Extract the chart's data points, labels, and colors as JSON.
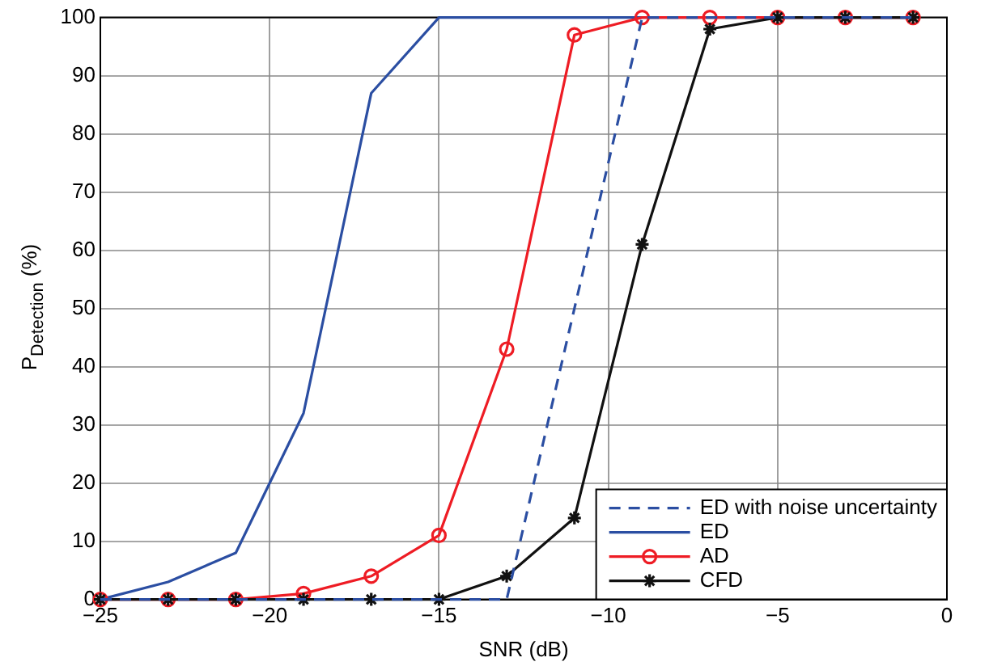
{
  "chart_data": {
    "type": "line",
    "xlabel": "SNR (dB)",
    "ylabel": "P$_{Detection}$ (%)",
    "x": [
      -25,
      -23,
      -21,
      -19,
      -17,
      -15,
      -13,
      -11,
      -9,
      -7,
      -5,
      -3,
      -1
    ],
    "series": [
      {
        "name": "ED with noise uncertainty",
        "color": "#2b4ea2",
        "line_style": "dashed",
        "marker": "none",
        "values": [
          0,
          0,
          0,
          0,
          0,
          0,
          0,
          50,
          100,
          100,
          100,
          100,
          100
        ]
      },
      {
        "name": "ED",
        "color": "#2b4ea2",
        "line_style": "solid",
        "marker": "none",
        "values": [
          0,
          3,
          8,
          32,
          87,
          100,
          100,
          100,
          100,
          100,
          100,
          100,
          100
        ]
      },
      {
        "name": "AD",
        "color": "#ee1c24",
        "line_style": "solid",
        "marker": "circle",
        "values": [
          0,
          0,
          0,
          1,
          4,
          11,
          43,
          97,
          100,
          100,
          100,
          100,
          100
        ]
      },
      {
        "name": "CFD",
        "color": "#111111",
        "line_style": "solid",
        "marker": "cross",
        "values": [
          0,
          0,
          0,
          0,
          0,
          0,
          4,
          14,
          61,
          98,
          100,
          100,
          100
        ]
      }
    ],
    "xlim": [
      -25,
      0
    ],
    "xticks": [
      {
        "value": -25,
        "label": "−25"
      },
      {
        "value": -20,
        "label": "−20"
      },
      {
        "value": -15,
        "label": "−15"
      },
      {
        "value": -10,
        "label": "−10"
      },
      {
        "value": -5,
        "label": "−5"
      },
      0
    ],
    "ylim": [
      0,
      100
    ],
    "yticks": [
      0,
      10,
      20,
      30,
      40,
      50,
      60,
      70,
      80,
      90,
      100
    ],
    "grid": true,
    "legend": "bottom right"
  }
}
